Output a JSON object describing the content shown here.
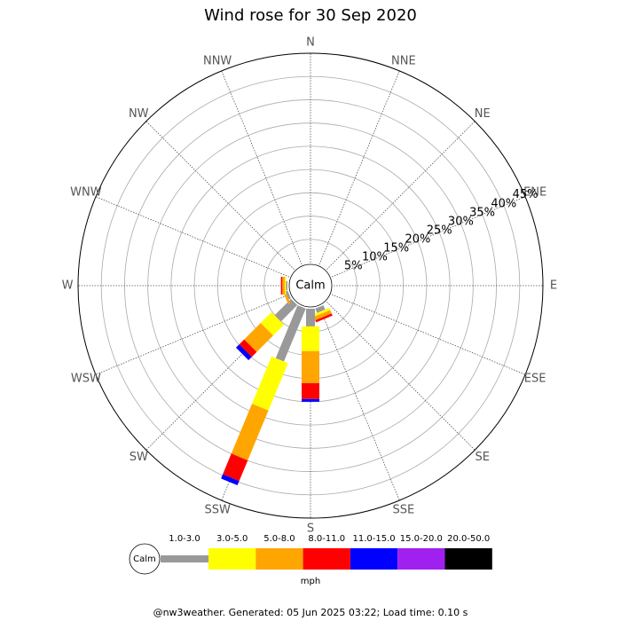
{
  "chart_data": {
    "type": "windrose",
    "title": "Wind rose for 30 Sep 2020",
    "categories": [
      "N",
      "NNE",
      "NE",
      "ENE",
      "E",
      "ESE",
      "SE",
      "SSE",
      "S",
      "SSW",
      "SW",
      "WSW",
      "W",
      "WNW",
      "NW",
      "NNW"
    ],
    "series": [
      {
        "name": "1.0-3.0",
        "color": "#999999",
        "values": [
          0,
          0,
          0,
          0,
          0,
          0,
          0,
          1,
          3.8,
          12.3,
          5,
          0.5,
          0.3,
          0,
          0,
          0
        ]
      },
      {
        "name": "3.0-5.0",
        "color": "#ffff00",
        "values": [
          0,
          0,
          0,
          0,
          0,
          0,
          0,
          0.5,
          5.3,
          11,
          3.3,
          0,
          0.3,
          0,
          0,
          0
        ]
      },
      {
        "name": "5.0-8.0",
        "color": "#ffa500",
        "values": [
          0,
          0,
          0,
          0,
          0,
          0,
          0,
          0.8,
          6.9,
          11.6,
          5,
          0.5,
          0.5,
          0,
          0,
          0
        ]
      },
      {
        "name": "8.0-11.0",
        "color": "#ff0000",
        "values": [
          0,
          0,
          0,
          0,
          0,
          0,
          0,
          0.5,
          3.4,
          4.8,
          1.5,
          0,
          0.3,
          0,
          0,
          0
        ]
      },
      {
        "name": "11.0-15.0",
        "color": "#0000ff",
        "values": [
          0,
          0,
          0,
          0,
          0,
          0,
          0,
          0,
          0.6,
          1,
          1,
          0,
          0,
          0,
          0,
          0
        ]
      },
      {
        "name": "15.0-20.0",
        "color": "#a020f0",
        "values": [
          0,
          0,
          0,
          0,
          0,
          0,
          0,
          0,
          0,
          0,
          0,
          0,
          0,
          0,
          0,
          0
        ]
      },
      {
        "name": "20.0-50.0",
        "color": "#000000",
        "values": [
          0,
          0,
          0,
          0,
          0,
          0,
          0,
          0,
          0,
          0,
          0,
          0,
          0,
          0,
          0,
          0
        ]
      }
    ],
    "rlim": [
      0,
      45
    ],
    "rticks": [
      {
        "value": 5,
        "label": "5%"
      },
      {
        "value": 10,
        "label": "10%"
      },
      {
        "value": 15,
        "label": "15%"
      },
      {
        "value": 20,
        "label": "20%"
      },
      {
        "value": 25,
        "label": "25%"
      },
      {
        "value": 30,
        "label": "30%"
      },
      {
        "value": 35,
        "label": "35%"
      },
      {
        "value": 40,
        "label": "40%"
      },
      {
        "value": 45,
        "label": "45%"
      }
    ],
    "calm_label": "Calm",
    "legend_unit": "mph",
    "footer": "@nw3weather. Generated: 05 Jun 2025 03:22; Load time: 0.10 s"
  }
}
